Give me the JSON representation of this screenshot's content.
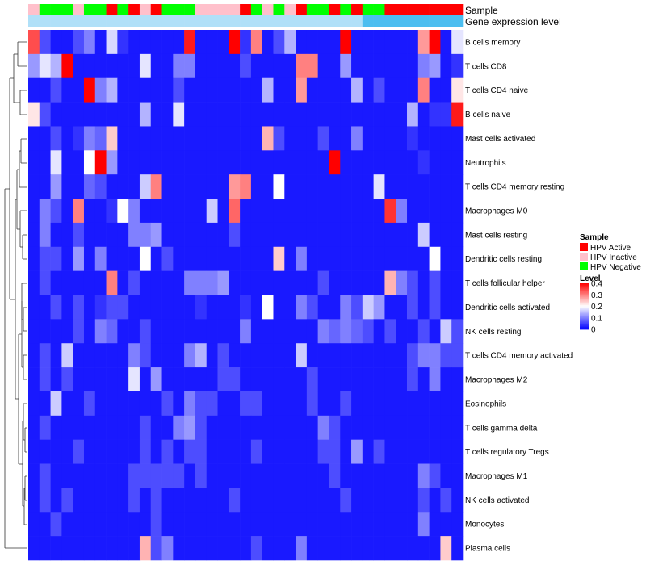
{
  "chart_data": {
    "type": "heatmap",
    "title": "",
    "rows": [
      "B cells memory",
      "T cells CD8",
      "T cells CD4 naive",
      "B cells naive",
      "Mast cells activated",
      "Neutrophils",
      "T cells CD4 memory resting",
      "Macrophages M0",
      "Mast cells resting",
      "Dendritic cells resting",
      "T cells follicular helper",
      "Dendritic cells activated",
      "NK cells resting",
      "T cells CD4 memory activated",
      "Macrophages M2",
      "Eosinophils",
      "T cells gamma delta",
      "T cells regulatory  Tregs",
      "Macrophages M1",
      "NK cells activated",
      "Monocytes",
      "Plasma cells"
    ],
    "column_annotations": [
      {
        "name": "Sample",
        "values": [
          "I",
          "N",
          "N",
          "N",
          "I",
          "N",
          "N",
          "A",
          "N",
          "A",
          "I",
          "A",
          "N",
          "N",
          "N",
          "I",
          "I",
          "I",
          "I",
          "A",
          "N",
          "I",
          "N",
          "I",
          "A",
          "N",
          "N",
          "A",
          "N",
          "A",
          "N",
          "N",
          "A",
          "A",
          "A",
          "A",
          "A",
          "A",
          "A"
        ]
      },
      {
        "name": "Gene expression level",
        "values": [
          "L",
          "L",
          "L",
          "L",
          "L",
          "L",
          "L",
          "L",
          "L",
          "L",
          "L",
          "L",
          "L",
          "L",
          "L",
          "L",
          "L",
          "L",
          "L",
          "L",
          "L",
          "L",
          "L",
          "L",
          "L",
          "L",
          "L",
          "L",
          "L",
          "L",
          "H",
          "H",
          "H",
          "H",
          "H",
          "H",
          "H",
          "H",
          "H"
        ]
      }
    ],
    "values": [
      [
        0.34,
        0.06,
        0.02,
        0.02,
        0.06,
        0.1,
        0.02,
        0.17,
        0.04,
        0.02,
        0.02,
        0.02,
        0.02,
        0.02,
        0.38,
        0.02,
        0.02,
        0.02,
        0.4,
        0.04,
        0.3,
        0.02,
        0.06,
        0.14,
        0.02,
        0.02,
        0.02,
        0.02,
        0.4,
        0.02,
        0.02,
        0.02,
        0.02,
        0.02,
        0.02,
        0.28,
        0.4,
        0.02,
        0.18
      ],
      [
        0.12,
        0.18,
        0.14,
        0.4,
        0.02,
        0.02,
        0.02,
        0.02,
        0.02,
        0.02,
        0.18,
        0.02,
        0.02,
        0.1,
        0.1,
        0.02,
        0.02,
        0.02,
        0.02,
        0.06,
        0.02,
        0.02,
        0.02,
        0.02,
        0.3,
        0.3,
        0.02,
        0.02,
        0.12,
        0.02,
        0.02,
        0.02,
        0.02,
        0.02,
        0.02,
        0.1,
        0.12,
        0.02,
        0.04
      ],
      [
        0.02,
        0.02,
        0.06,
        0.02,
        0.02,
        0.4,
        0.1,
        0.14,
        0.02,
        0.02,
        0.02,
        0.02,
        0.02,
        0.06,
        0.02,
        0.02,
        0.02,
        0.02,
        0.02,
        0.02,
        0.02,
        0.14,
        0.02,
        0.02,
        0.28,
        0.02,
        0.02,
        0.02,
        0.02,
        0.14,
        0.02,
        0.06,
        0.02,
        0.02,
        0.02,
        0.3,
        0.02,
        0.02,
        0.22
      ],
      [
        0.22,
        0.06,
        0.02,
        0.02,
        0.02,
        0.02,
        0.02,
        0.02,
        0.02,
        0.02,
        0.14,
        0.02,
        0.02,
        0.18,
        0.02,
        0.02,
        0.02,
        0.02,
        0.02,
        0.02,
        0.02,
        0.02,
        0.02,
        0.02,
        0.02,
        0.02,
        0.02,
        0.02,
        0.02,
        0.02,
        0.02,
        0.02,
        0.02,
        0.02,
        0.14,
        0.02,
        0.04,
        0.04,
        0.38
      ],
      [
        0.02,
        0.02,
        0.06,
        0.02,
        0.04,
        0.1,
        0.08,
        0.24,
        0.02,
        0.02,
        0.02,
        0.02,
        0.02,
        0.02,
        0.02,
        0.02,
        0.02,
        0.02,
        0.02,
        0.02,
        0.02,
        0.26,
        0.06,
        0.02,
        0.02,
        0.02,
        0.06,
        0.02,
        0.02,
        0.1,
        0.02,
        0.02,
        0.02,
        0.02,
        0.04,
        0.02,
        0.02,
        0.02,
        0.02
      ],
      [
        0.02,
        0.02,
        0.18,
        0.02,
        0.02,
        0.2,
        0.4,
        0.12,
        0.02,
        0.02,
        0.02,
        0.02,
        0.02,
        0.02,
        0.02,
        0.02,
        0.02,
        0.02,
        0.02,
        0.02,
        0.02,
        0.02,
        0.02,
        0.02,
        0.02,
        0.02,
        0.02,
        0.4,
        0.02,
        0.02,
        0.02,
        0.02,
        0.02,
        0.02,
        0.02,
        0.04,
        0.02,
        0.02,
        0.02
      ],
      [
        0.02,
        0.02,
        0.12,
        0.02,
        0.02,
        0.08,
        0.06,
        0.02,
        0.02,
        0.02,
        0.16,
        0.3,
        0.02,
        0.02,
        0.02,
        0.02,
        0.02,
        0.02,
        0.28,
        0.3,
        0.02,
        0.02,
        0.2,
        0.02,
        0.02,
        0.02,
        0.02,
        0.02,
        0.02,
        0.02,
        0.02,
        0.18,
        0.02,
        0.02,
        0.02,
        0.02,
        0.02,
        0.02,
        0.02
      ],
      [
        0.02,
        0.1,
        0.06,
        0.02,
        0.3,
        0.02,
        0.02,
        0.04,
        0.2,
        0.1,
        0.02,
        0.02,
        0.02,
        0.02,
        0.02,
        0.02,
        0.16,
        0.02,
        0.32,
        0.02,
        0.02,
        0.02,
        0.02,
        0.02,
        0.02,
        0.02,
        0.02,
        0.02,
        0.02,
        0.02,
        0.02,
        0.02,
        0.36,
        0.1,
        0.02,
        0.02,
        0.02,
        0.02,
        0.02
      ],
      [
        0.02,
        0.1,
        0.02,
        0.02,
        0.06,
        0.02,
        0.02,
        0.02,
        0.02,
        0.1,
        0.1,
        0.12,
        0.02,
        0.02,
        0.02,
        0.02,
        0.02,
        0.02,
        0.06,
        0.02,
        0.02,
        0.02,
        0.02,
        0.02,
        0.02,
        0.02,
        0.02,
        0.02,
        0.02,
        0.02,
        0.02,
        0.02,
        0.02,
        0.02,
        0.02,
        0.16,
        0.02,
        0.02,
        0.02
      ],
      [
        0.02,
        0.06,
        0.06,
        0.02,
        0.12,
        0.02,
        0.1,
        0.02,
        0.02,
        0.02,
        0.2,
        0.02,
        0.06,
        0.02,
        0.02,
        0.02,
        0.02,
        0.02,
        0.02,
        0.02,
        0.02,
        0.02,
        0.24,
        0.02,
        0.1,
        0.02,
        0.02,
        0.02,
        0.02,
        0.02,
        0.02,
        0.02,
        0.02,
        0.02,
        0.02,
        0.02,
        0.2,
        0.02,
        0.02
      ],
      [
        0.02,
        0.06,
        0.02,
        0.02,
        0.02,
        0.02,
        0.02,
        0.3,
        0.02,
        0.06,
        0.02,
        0.02,
        0.02,
        0.02,
        0.1,
        0.1,
        0.1,
        0.12,
        0.02,
        0.02,
        0.02,
        0.02,
        0.02,
        0.02,
        0.02,
        0.02,
        0.06,
        0.02,
        0.02,
        0.02,
        0.02,
        0.02,
        0.26,
        0.1,
        0.06,
        0.02,
        0.06,
        0.02,
        0.02
      ],
      [
        0.02,
        0.02,
        0.06,
        0.02,
        0.06,
        0.02,
        0.04,
        0.06,
        0.06,
        0.02,
        0.02,
        0.02,
        0.02,
        0.02,
        0.02,
        0.04,
        0.02,
        0.02,
        0.02,
        0.04,
        0.02,
        0.2,
        0.02,
        0.02,
        0.1,
        0.06,
        0.02,
        0.02,
        0.1,
        0.06,
        0.16,
        0.12,
        0.02,
        0.02,
        0.06,
        0.02,
        0.06,
        0.02,
        0.02
      ],
      [
        0.02,
        0.02,
        0.02,
        0.02,
        0.06,
        0.02,
        0.1,
        0.08,
        0.02,
        0.02,
        0.06,
        0.02,
        0.02,
        0.02,
        0.02,
        0.02,
        0.02,
        0.02,
        0.02,
        0.1,
        0.02,
        0.02,
        0.02,
        0.02,
        0.02,
        0.02,
        0.1,
        0.08,
        0.1,
        0.08,
        0.06,
        0.02,
        0.06,
        0.02,
        0.02,
        0.06,
        0.02,
        0.16,
        0.06
      ],
      [
        0.02,
        0.06,
        0.02,
        0.16,
        0.02,
        0.02,
        0.02,
        0.02,
        0.02,
        0.1,
        0.06,
        0.02,
        0.02,
        0.02,
        0.1,
        0.14,
        0.02,
        0.06,
        0.02,
        0.02,
        0.02,
        0.02,
        0.02,
        0.02,
        0.16,
        0.02,
        0.02,
        0.02,
        0.02,
        0.02,
        0.02,
        0.02,
        0.02,
        0.02,
        0.06,
        0.1,
        0.1,
        0.06,
        0.06
      ],
      [
        0.02,
        0.06,
        0.02,
        0.06,
        0.02,
        0.02,
        0.02,
        0.02,
        0.02,
        0.18,
        0.02,
        0.12,
        0.02,
        0.02,
        0.02,
        0.02,
        0.02,
        0.06,
        0.06,
        0.02,
        0.02,
        0.02,
        0.02,
        0.02,
        0.02,
        0.06,
        0.02,
        0.02,
        0.02,
        0.02,
        0.02,
        0.02,
        0.02,
        0.02,
        0.06,
        0.02,
        0.1,
        0.02,
        0.02
      ],
      [
        0.02,
        0.02,
        0.16,
        0.02,
        0.02,
        0.06,
        0.02,
        0.02,
        0.02,
        0.02,
        0.02,
        0.02,
        0.06,
        0.02,
        0.1,
        0.06,
        0.06,
        0.02,
        0.02,
        0.06,
        0.06,
        0.02,
        0.02,
        0.02,
        0.02,
        0.06,
        0.02,
        0.02,
        0.06,
        0.02,
        0.02,
        0.02,
        0.02,
        0.02,
        0.02,
        0.02,
        0.02,
        0.02,
        0.02
      ],
      [
        0.02,
        0.06,
        0.02,
        0.02,
        0.02,
        0.02,
        0.02,
        0.02,
        0.02,
        0.02,
        0.06,
        0.02,
        0.02,
        0.1,
        0.12,
        0.06,
        0.02,
        0.02,
        0.02,
        0.02,
        0.02,
        0.02,
        0.02,
        0.02,
        0.02,
        0.02,
        0.1,
        0.06,
        0.02,
        0.02,
        0.02,
        0.02,
        0.02,
        0.02,
        0.02,
        0.02,
        0.02,
        0.02,
        0.02
      ],
      [
        0.02,
        0.02,
        0.02,
        0.02,
        0.06,
        0.02,
        0.02,
        0.02,
        0.02,
        0.02,
        0.06,
        0.02,
        0.06,
        0.02,
        0.06,
        0.06,
        0.02,
        0.02,
        0.02,
        0.02,
        0.06,
        0.02,
        0.02,
        0.02,
        0.02,
        0.02,
        0.06,
        0.06,
        0.02,
        0.12,
        0.02,
        0.06,
        0.02,
        0.02,
        0.02,
        0.02,
        0.02,
        0.02,
        0.02
      ],
      [
        0.02,
        0.06,
        0.02,
        0.02,
        0.02,
        0.02,
        0.02,
        0.02,
        0.02,
        0.06,
        0.06,
        0.06,
        0.06,
        0.06,
        0.02,
        0.06,
        0.02,
        0.02,
        0.02,
        0.02,
        0.02,
        0.02,
        0.02,
        0.02,
        0.02,
        0.02,
        0.02,
        0.06,
        0.02,
        0.02,
        0.02,
        0.02,
        0.02,
        0.02,
        0.02,
        0.1,
        0.06,
        0.02,
        0.02
      ],
      [
        0.02,
        0.06,
        0.02,
        0.06,
        0.02,
        0.02,
        0.02,
        0.02,
        0.02,
        0.06,
        0.02,
        0.06,
        0.02,
        0.02,
        0.02,
        0.02,
        0.02,
        0.02,
        0.06,
        0.02,
        0.02,
        0.02,
        0.02,
        0.02,
        0.02,
        0.02,
        0.02,
        0.02,
        0.06,
        0.02,
        0.02,
        0.02,
        0.02,
        0.02,
        0.02,
        0.06,
        0.02,
        0.06,
        0.02
      ],
      [
        0.02,
        0.02,
        0.06,
        0.02,
        0.02,
        0.02,
        0.02,
        0.02,
        0.02,
        0.02,
        0.02,
        0.06,
        0.02,
        0.02,
        0.02,
        0.02,
        0.02,
        0.02,
        0.02,
        0.02,
        0.02,
        0.02,
        0.02,
        0.02,
        0.02,
        0.02,
        0.02,
        0.02,
        0.02,
        0.02,
        0.02,
        0.02,
        0.02,
        0.02,
        0.02,
        0.1,
        0.02,
        0.02,
        0.02
      ],
      [
        0.02,
        0.02,
        0.02,
        0.02,
        0.02,
        0.02,
        0.02,
        0.02,
        0.02,
        0.02,
        0.26,
        0.06,
        0.1,
        0.02,
        0.02,
        0.02,
        0.02,
        0.02,
        0.02,
        0.02,
        0.06,
        0.02,
        0.02,
        0.02,
        0.1,
        0.02,
        0.02,
        0.02,
        0.02,
        0.02,
        0.02,
        0.02,
        0.02,
        0.02,
        0.02,
        0.02,
        0.02,
        0.24,
        0.02
      ]
    ],
    "legend": {
      "sample": {
        "title": "Sample",
        "entries": [
          {
            "label": "HPV Active",
            "color": "#ff0000"
          },
          {
            "label": "HPV Inactive",
            "color": "#ffc0cb"
          },
          {
            "label": "HPV Negative",
            "color": "#00ff00"
          }
        ]
      },
      "level": {
        "title": "Level",
        "ticks": [
          "0.4",
          "0.3",
          "0.2",
          "0.1",
          "0"
        ],
        "tick_values": [
          0.4,
          0.3,
          0.2,
          0.1,
          0
        ],
        "range": [
          0,
          0.4
        ],
        "colors": [
          "#0000ff",
          "#ffffff",
          "#ff0000"
        ]
      }
    },
    "annotation_colors": {
      "A": "#ff0000",
      "I": "#ffc0cb",
      "N": "#00ff00",
      "L": "#b0e0f8",
      "H": "#4cbef0"
    },
    "dendrogram": "row"
  }
}
